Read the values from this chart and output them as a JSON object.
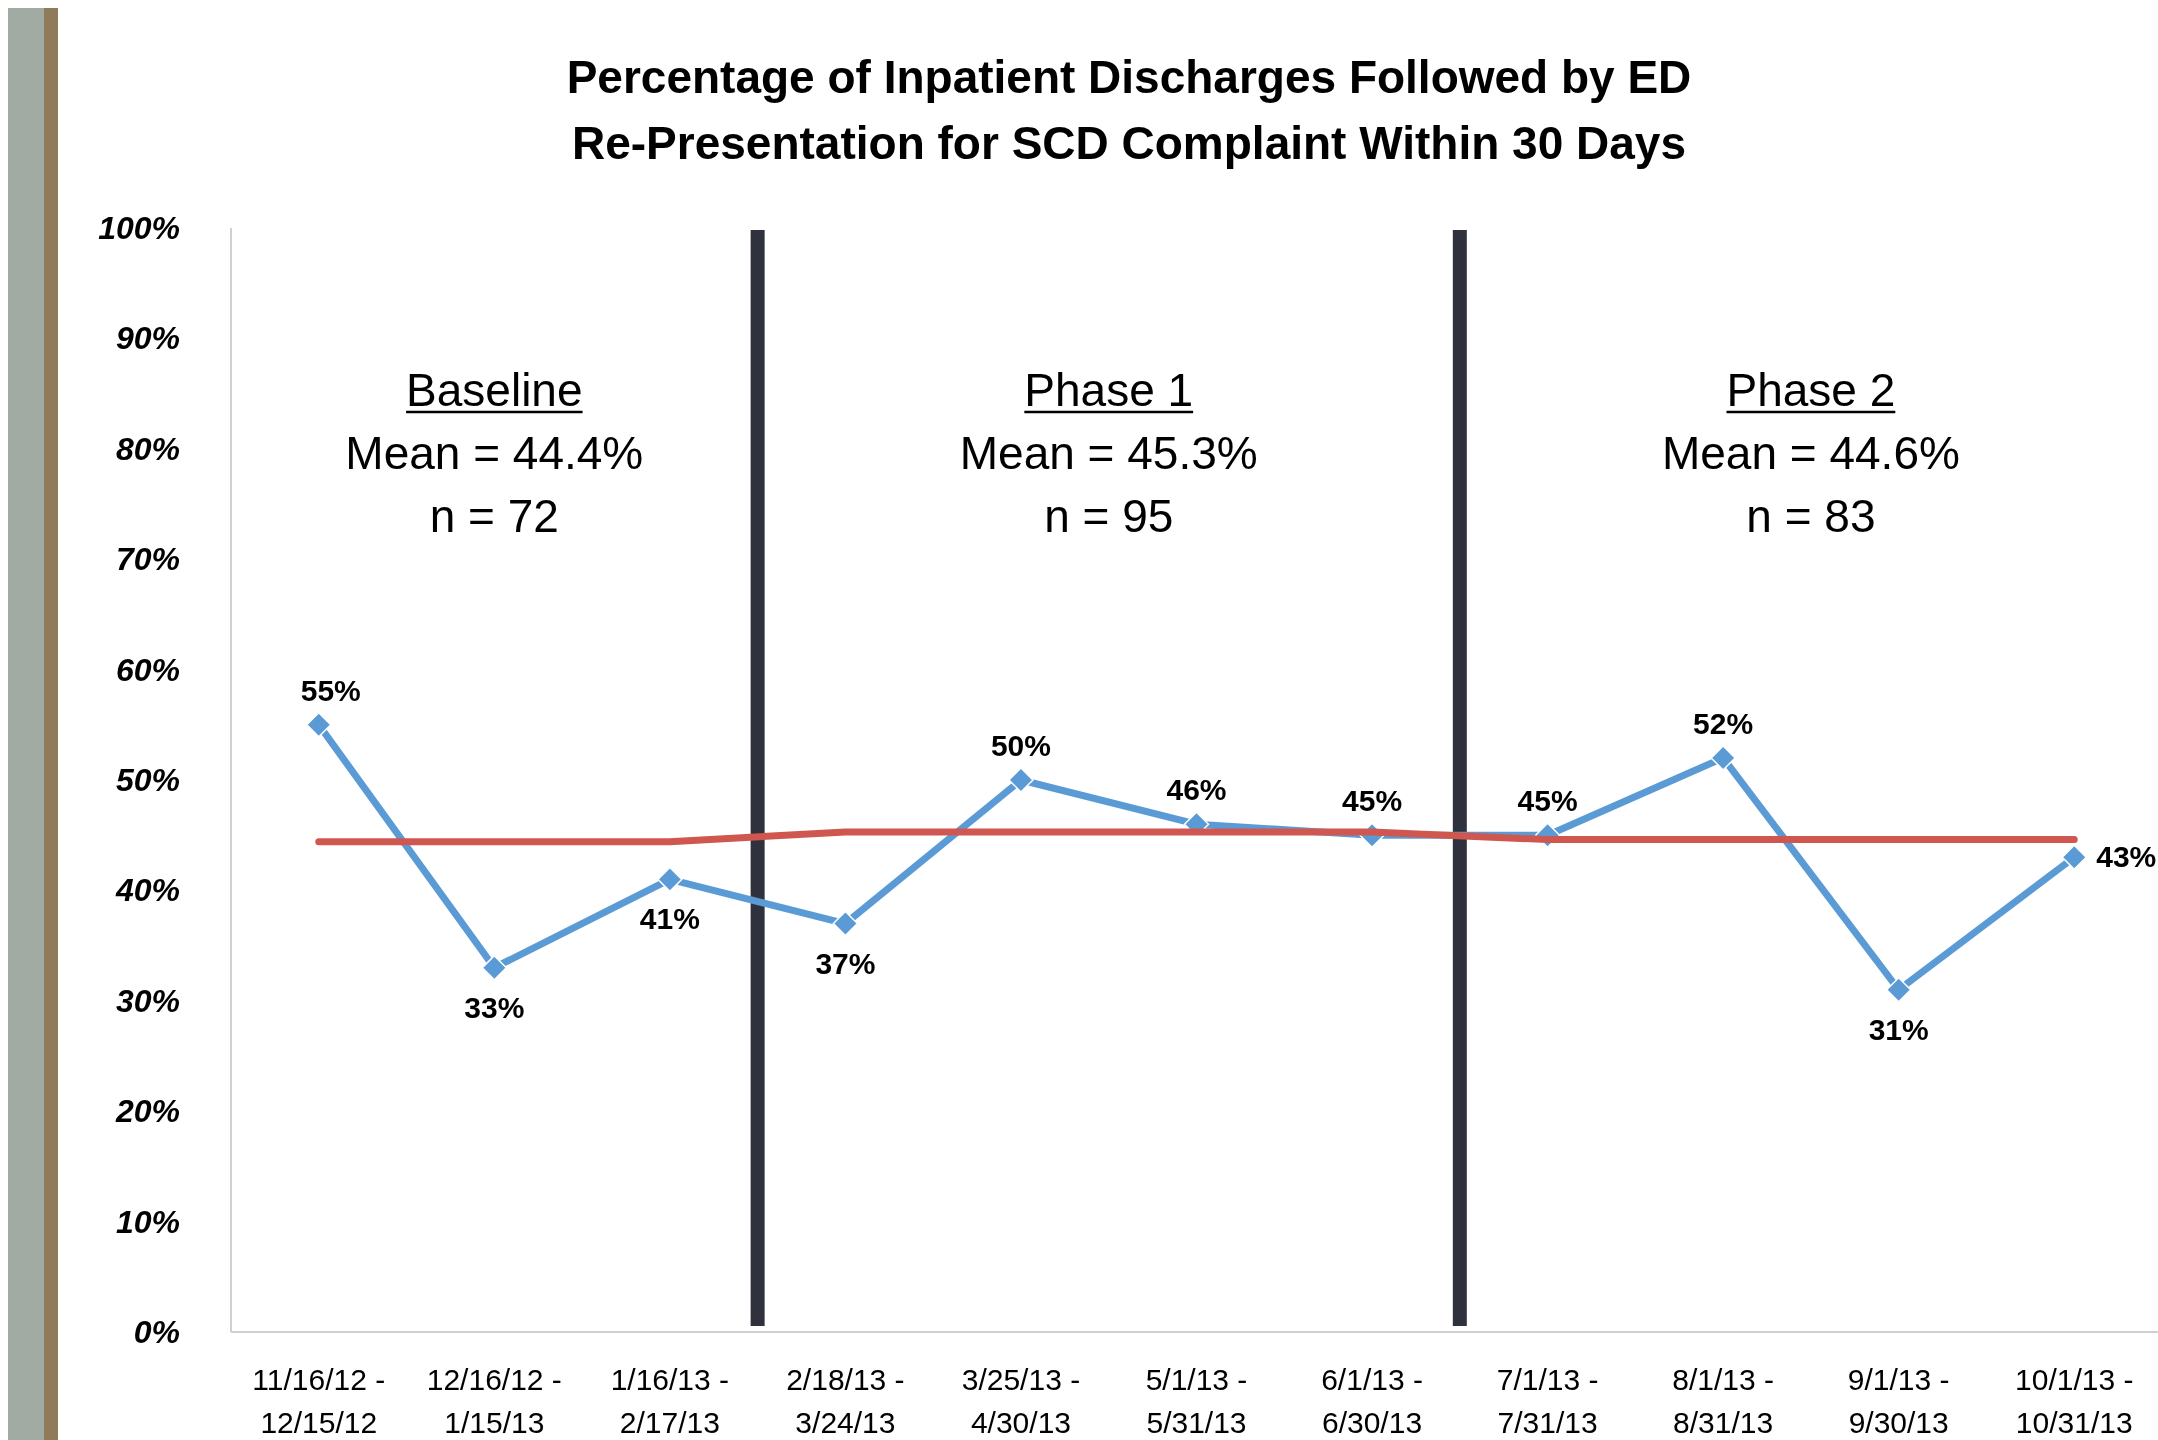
{
  "chart_data": {
    "type": "line",
    "title": "Percentage of Inpatient Discharges Followed by ED Re-Presentation for SCD Complaint Within 30 Days",
    "categories": [
      "11/16/12 -\n12/15/12",
      "12/16/12 -\n1/15/13",
      "1/16/13 -\n2/17/13",
      "2/18/13 -\n3/24/13",
      "3/25/13 -\n4/30/13",
      "5/1/13 -\n5/31/13",
      "6/1/13 -\n6/30/13",
      "7/1/13 -\n7/31/13",
      "8/1/13 -\n8/31/13",
      "9/1/13 -\n9/30/13",
      "10/1/13 -\n10/31/13"
    ],
    "series": [
      {
        "color": "#5b9bd5",
        "marker": "diamond",
        "values": [
          55,
          33,
          41,
          37,
          50,
          46,
          45,
          45,
          52,
          31,
          43
        ],
        "value_labels": [
          "55%",
          "33%",
          "41%",
          "37%",
          "50%",
          "46%",
          "45%",
          "45%",
          "52%",
          "31%",
          "43%"
        ]
      },
      {
        "color": "#d0574f",
        "marker": "none",
        "values": [
          44.4,
          44.4,
          44.4,
          45.3,
          45.3,
          45.3,
          45.3,
          44.6,
          44.6,
          44.6,
          44.6
        ]
      }
    ],
    "ylim": [
      0,
      100
    ],
    "yticks": [
      {
        "value": 0,
        "label": "0%"
      },
      {
        "value": 10,
        "label": "10%"
      },
      {
        "value": 20,
        "label": "20%"
      },
      {
        "value": 30,
        "label": "30%"
      },
      {
        "value": 40,
        "label": "40%"
      },
      {
        "value": 50,
        "label": "50%"
      },
      {
        "value": 60,
        "label": "60%"
      },
      {
        "value": 70,
        "label": "70%"
      },
      {
        "value": 80,
        "label": "80%"
      },
      {
        "value": 90,
        "label": "90%"
      },
      {
        "value": 100,
        "label": "100%"
      }
    ],
    "grid": false,
    "annotations": [
      "Baseline\nMean = 44.4%\nn = 72",
      "Phase 1\nMean = 45.3%\nn = 95",
      "Phase 2\nMean = 44.6%\nn = 83"
    ]
  }
}
